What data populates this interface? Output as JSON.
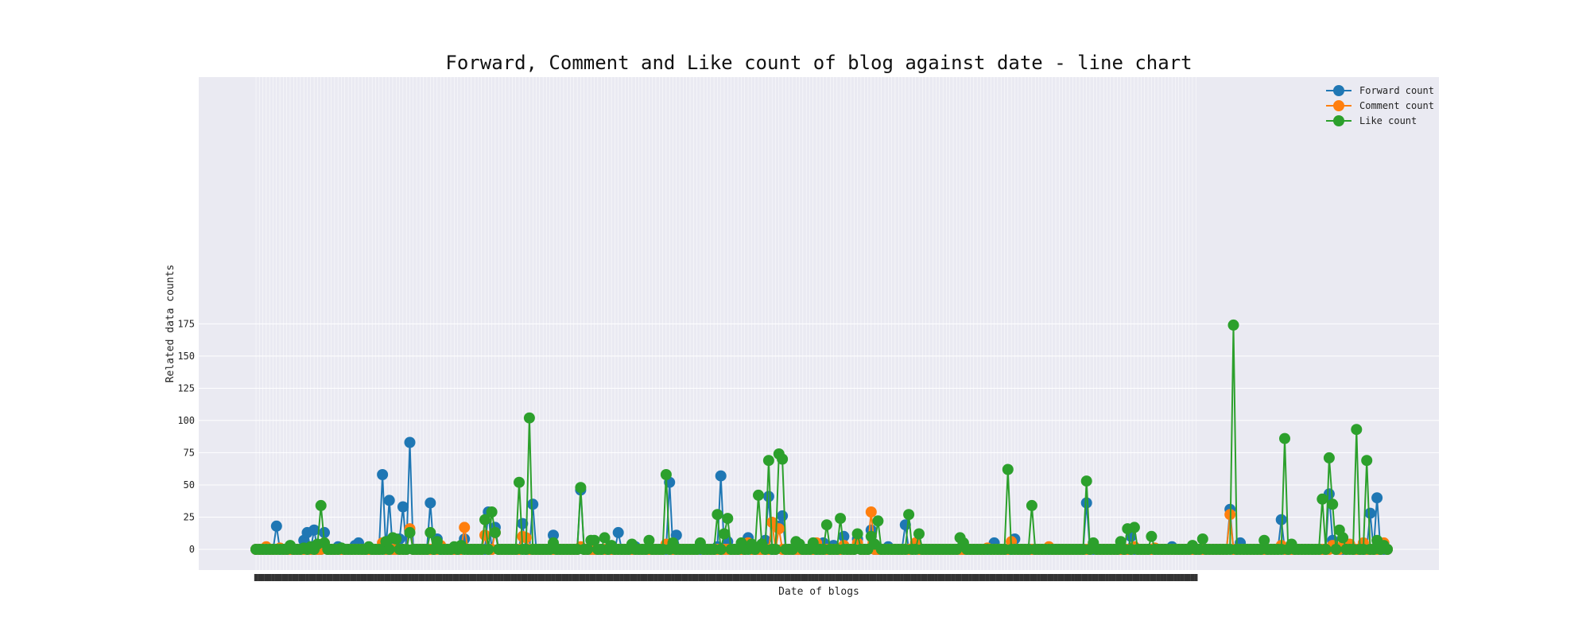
{
  "chart_data": {
    "type": "line",
    "title": "Forward, Comment and Like count of blog against date - line chart",
    "xlabel": "Date of blogs",
    "ylabel": "Related data counts",
    "ylim": [
      -8,
      183
    ],
    "yticks": [
      0,
      25,
      50,
      75,
      100,
      125,
      150,
      175
    ],
    "xtick_labels_visible": false,
    "n_points": 276,
    "grid": true,
    "legend_position": "top-right",
    "series": [
      {
        "name": "Forward count",
        "color": "#1f77b4",
        "points": [
          [
            6,
            18
          ],
          [
            14,
            7
          ],
          [
            15,
            13
          ],
          [
            17,
            15
          ],
          [
            20,
            13
          ],
          [
            24,
            2
          ],
          [
            29,
            3
          ],
          [
            30,
            5
          ],
          [
            37,
            58
          ],
          [
            39,
            38
          ],
          [
            42,
            8
          ],
          [
            43,
            33
          ],
          [
            45,
            83
          ],
          [
            51,
            36
          ],
          [
            53,
            8
          ],
          [
            61,
            8
          ],
          [
            68,
            29
          ],
          [
            70,
            17
          ],
          [
            78,
            20
          ],
          [
            81,
            35
          ],
          [
            87,
            11
          ],
          [
            95,
            46
          ],
          [
            106,
            13
          ],
          [
            111,
            2
          ],
          [
            121,
            52
          ],
          [
            123,
            11
          ],
          [
            135,
            2
          ],
          [
            136,
            57
          ],
          [
            138,
            6
          ],
          [
            144,
            9
          ],
          [
            149,
            7
          ],
          [
            150,
            41
          ],
          [
            153,
            18
          ],
          [
            154,
            26
          ],
          [
            166,
            5
          ],
          [
            169,
            3
          ],
          [
            172,
            10
          ],
          [
            176,
            8
          ],
          [
            180,
            15
          ],
          [
            185,
            2
          ],
          [
            190,
            19
          ],
          [
            193,
            4
          ],
          [
            216,
            5
          ],
          [
            222,
            8
          ],
          [
            243,
            36
          ],
          [
            256,
            10
          ],
          [
            268,
            2
          ],
          [
            285,
            31
          ],
          [
            288,
            5
          ],
          [
            300,
            23
          ],
          [
            314,
            43
          ],
          [
            315,
            7
          ],
          [
            320,
            3
          ],
          [
            326,
            28
          ],
          [
            328,
            40
          ]
        ],
        "total": 332
      },
      {
        "name": "Comment count",
        "color": "#ff7f0e",
        "points": [
          [
            3,
            2
          ],
          [
            7,
            1
          ],
          [
            20,
            5
          ],
          [
            37,
            5
          ],
          [
            45,
            16
          ],
          [
            54,
            3
          ],
          [
            61,
            17
          ],
          [
            67,
            11
          ],
          [
            70,
            13
          ],
          [
            78,
            10
          ],
          [
            79,
            9
          ],
          [
            95,
            2
          ],
          [
            120,
            4
          ],
          [
            130,
            2
          ],
          [
            144,
            5
          ],
          [
            151,
            21
          ],
          [
            153,
            16
          ],
          [
            164,
            5
          ],
          [
            172,
            3
          ],
          [
            176,
            5
          ],
          [
            180,
            29
          ],
          [
            193,
            5
          ],
          [
            214,
            1
          ],
          [
            221,
            6
          ],
          [
            232,
            2
          ],
          [
            245,
            2
          ],
          [
            257,
            2
          ],
          [
            263,
            1
          ],
          [
            285,
            27
          ],
          [
            300,
            3
          ],
          [
            315,
            3
          ],
          [
            318,
            3
          ],
          [
            320,
            4
          ],
          [
            324,
            5
          ],
          [
            330,
            5
          ]
        ],
        "total": 332
      },
      {
        "name": "Like count",
        "color": "#2ca02c",
        "points": [
          [
            10,
            3
          ],
          [
            14,
            1
          ],
          [
            16,
            2
          ],
          [
            18,
            4
          ],
          [
            19,
            34
          ],
          [
            20,
            5
          ],
          [
            25,
            1
          ],
          [
            33,
            2
          ],
          [
            38,
            6
          ],
          [
            40,
            9
          ],
          [
            41,
            8
          ],
          [
            45,
            13
          ],
          [
            51,
            13
          ],
          [
            53,
            6
          ],
          [
            58,
            2
          ],
          [
            60,
            3
          ],
          [
            67,
            23
          ],
          [
            69,
            29
          ],
          [
            70,
            13
          ],
          [
            77,
            52
          ],
          [
            80,
            102
          ],
          [
            87,
            5
          ],
          [
            95,
            48
          ],
          [
            98,
            7
          ],
          [
            99,
            7
          ],
          [
            102,
            9
          ],
          [
            104,
            3
          ],
          [
            110,
            4
          ],
          [
            115,
            7
          ],
          [
            120,
            58
          ],
          [
            122,
            5
          ],
          [
            130,
            5
          ],
          [
            135,
            27
          ],
          [
            137,
            12
          ],
          [
            138,
            24
          ],
          [
            142,
            5
          ],
          [
            145,
            4
          ],
          [
            147,
            42
          ],
          [
            148,
            4
          ],
          [
            150,
            69
          ],
          [
            153,
            74
          ],
          [
            154,
            70
          ],
          [
            158,
            6
          ],
          [
            159,
            4
          ],
          [
            163,
            5
          ],
          [
            167,
            19
          ],
          [
            171,
            24
          ],
          [
            176,
            12
          ],
          [
            180,
            10
          ],
          [
            181,
            4
          ],
          [
            182,
            22
          ],
          [
            191,
            27
          ],
          [
            194,
            12
          ],
          [
            206,
            9
          ],
          [
            207,
            5
          ],
          [
            220,
            62
          ],
          [
            227,
            34
          ],
          [
            243,
            53
          ],
          [
            245,
            5
          ],
          [
            253,
            6
          ],
          [
            255,
            16
          ],
          [
            257,
            17
          ],
          [
            262,
            10
          ],
          [
            274,
            3
          ],
          [
            277,
            8
          ],
          [
            286,
            174
          ],
          [
            295,
            7
          ],
          [
            301,
            86
          ],
          [
            303,
            4
          ],
          [
            312,
            39
          ],
          [
            314,
            71
          ],
          [
            315,
            35
          ],
          [
            317,
            15
          ],
          [
            318,
            9
          ],
          [
            322,
            93
          ],
          [
            325,
            69
          ],
          [
            328,
            7
          ],
          [
            330,
            3
          ]
        ],
        "total": 332
      }
    ]
  }
}
